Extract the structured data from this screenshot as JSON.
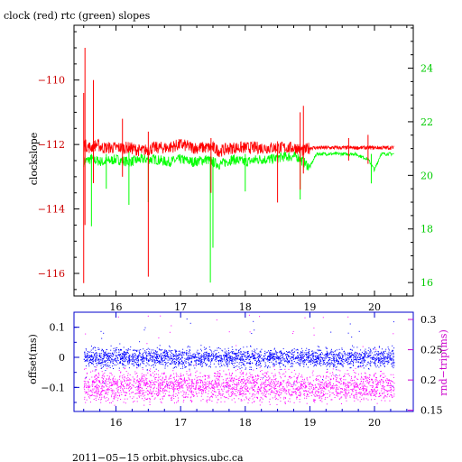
{
  "chart_data": [
    {
      "type": "line",
      "title": "clock (red) rtc (green) slopes",
      "ylabel": "clockslope",
      "x_ticks": [
        16,
        17,
        18,
        19,
        20
      ],
      "x_range": [
        15.35,
        20.6
      ],
      "left_axis": {
        "range": [
          -116.7,
          -108.3
        ],
        "ticks": [
          -110,
          -112,
          -114,
          -116
        ],
        "color": "#cc0000"
      },
      "right_axis": {
        "range": [
          15.5,
          25.6
        ],
        "ticks": [
          16,
          18,
          20,
          22,
          24
        ],
        "color": "#00cc00"
      },
      "series": [
        {
          "name": "clock",
          "color": "#ff0000",
          "axis": "left",
          "baseline": -112.1,
          "x": [
            15.5,
            15.6,
            15.7,
            15.8,
            16.0,
            16.2,
            16.4,
            16.6,
            16.8,
            17.0,
            17.2,
            17.4,
            17.5,
            17.6,
            17.8,
            18.0,
            18.2,
            18.4,
            18.6,
            18.8,
            18.9,
            19.0,
            19.2,
            19.4,
            19.6,
            19.8,
            20.0,
            20.2,
            20.3
          ],
          "y": [
            -112.0,
            -112.1,
            -112.0,
            -112.1,
            -112.1,
            -112.1,
            -112.2,
            -112.1,
            -112.1,
            -112.0,
            -112.1,
            -112.1,
            -112.1,
            -112.2,
            -112.1,
            -112.1,
            -112.1,
            -112.1,
            -112.1,
            -112.1,
            -112.2,
            -112.1,
            -112.1,
            -112.1,
            -112.1,
            -112.1,
            -112.1,
            -112.1,
            -112.1
          ],
          "spikes": [
            {
              "x": 15.5,
              "low": -116.3,
              "high": -110.4
            },
            {
              "x": 15.52,
              "low": -114.5,
              "high": -109.0
            },
            {
              "x": 15.65,
              "low": -113.2,
              "high": -110.0
            },
            {
              "x": 16.1,
              "low": -113.0,
              "high": -111.2
            },
            {
              "x": 16.5,
              "low": -116.1,
              "high": -111.6
            },
            {
              "x": 17.47,
              "low": -113.5,
              "high": -111.8
            },
            {
              "x": 18.5,
              "low": -113.8,
              "high": -111.9
            },
            {
              "x": 18.85,
              "low": -113.4,
              "high": -111.0
            },
            {
              "x": 18.9,
              "low": -112.9,
              "high": -110.8
            },
            {
              "x": 19.6,
              "low": -112.5,
              "high": -111.8
            },
            {
              "x": 19.9,
              "low": -112.6,
              "high": -111.7
            }
          ]
        },
        {
          "name": "rtc",
          "color": "#00ff00",
          "axis": "right",
          "x": [
            15.5,
            15.6,
            15.8,
            16.0,
            16.2,
            16.4,
            16.6,
            16.8,
            17.0,
            17.2,
            17.4,
            17.6,
            17.8,
            18.0,
            18.2,
            18.4,
            18.6,
            18.8,
            19.0,
            19.1,
            19.3,
            19.5,
            19.7,
            19.9,
            20.0,
            20.1,
            20.3
          ],
          "y": [
            20.5,
            20.6,
            20.5,
            20.6,
            20.5,
            20.6,
            20.6,
            20.5,
            20.6,
            20.5,
            20.6,
            20.4,
            20.6,
            20.5,
            20.6,
            20.6,
            20.7,
            20.7,
            20.3,
            20.8,
            20.8,
            20.8,
            20.8,
            20.6,
            20.2,
            20.8,
            20.8
          ],
          "spikes": [
            {
              "x": 15.62,
              "low": 18.1,
              "high": 20.8
            },
            {
              "x": 15.85,
              "low": 19.5,
              "high": 20.8
            },
            {
              "x": 16.2,
              "low": 18.9,
              "high": 20.9
            },
            {
              "x": 16.5,
              "low": 19.0,
              "high": 20.8
            },
            {
              "x": 17.46,
              "low": 16.0,
              "high": 20.7
            },
            {
              "x": 17.5,
              "low": 17.3,
              "high": 20.6
            },
            {
              "x": 18.0,
              "low": 19.4,
              "high": 20.8
            },
            {
              "x": 18.85,
              "low": 19.1,
              "high": 20.9
            },
            {
              "x": 19.95,
              "low": 19.7,
              "high": 20.8
            }
          ]
        }
      ]
    },
    {
      "type": "scatter",
      "ylabel": "offset(ms)",
      "y2label": "rnd−trip(ms)",
      "x_ticks": [
        16,
        17,
        18,
        19,
        20
      ],
      "x_range": [
        15.35,
        20.6
      ],
      "left_axis": {
        "range": [
          -0.18,
          0.15
        ],
        "ticks": [
          0.1,
          0,
          -0.1
        ],
        "color": "#0000cc"
      },
      "right_axis": {
        "range": [
          0.148,
          0.312
        ],
        "ticks": [
          0.3,
          0.25,
          0.2,
          0.15
        ],
        "color": "#cc00cc"
      },
      "series": [
        {
          "name": "offset",
          "color": "#0000ff",
          "axis": "left",
          "x_range": [
            15.5,
            20.3
          ],
          "center": 0.0,
          "band": 0.025,
          "outlier_range": [
            -0.1,
            0.13
          ]
        },
        {
          "name": "rnd-trip",
          "color": "#ff00ff",
          "axis": "right",
          "x_range": [
            15.5,
            20.3
          ],
          "center": 0.19,
          "band": 0.02,
          "outlier_range": [
            0.16,
            0.31
          ]
        }
      ]
    }
  ],
  "footer": {
    "label": "2011−05−15 orbit.physics.ubc.ca"
  }
}
